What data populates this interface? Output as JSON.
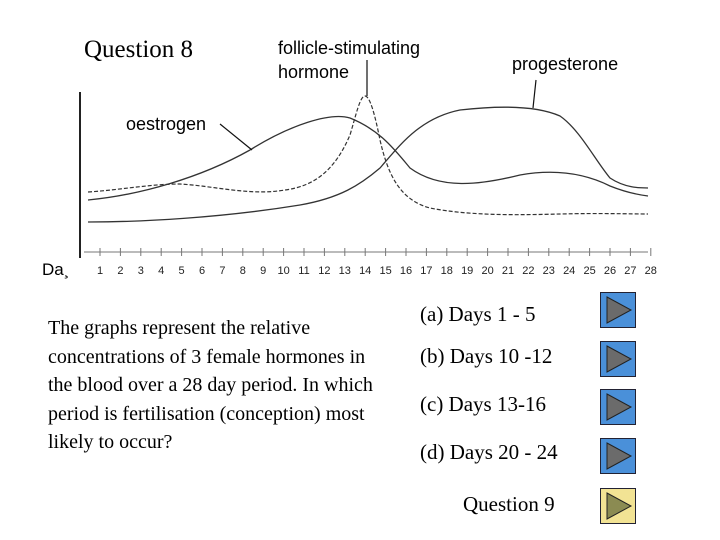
{
  "question": {
    "title": "Question 8",
    "text": "The graphs represent the relative concentrations of  3 female hormones in the blood over a 28 day period. In which period is fertilisation (conception) most likely to occur?"
  },
  "diagram": {
    "labels": {
      "fsh": [
        "follicle-stimulating",
        "hormone"
      ],
      "progesterone": "progesterone",
      "oestrogen": "oestrogen",
      "day_axis": "Da¸"
    },
    "days": [
      "1",
      "2",
      "3",
      "4",
      "5",
      "6",
      "7",
      "8",
      "9",
      "10",
      "11",
      "12",
      "13",
      "14",
      "15",
      "16",
      "17",
      "18",
      "19",
      "20",
      "21",
      "22",
      "23",
      "24",
      "25",
      "26",
      "27",
      "28"
    ]
  },
  "options": [
    {
      "id": "a",
      "label": "(a) Days 1 - 5"
    },
    {
      "id": "b",
      "label": "(b) Days 10 -12"
    },
    {
      "id": "c",
      "label": "(c) Days 13-16"
    },
    {
      "id": "d",
      "label": "(d) Days 20 - 24"
    }
  ],
  "navigation": {
    "next_label": "Question 9"
  },
  "colors": {
    "option_button": "#4a90d9",
    "next_button": "#8b8b52",
    "curve": "#333333",
    "axis": "#222222"
  }
}
